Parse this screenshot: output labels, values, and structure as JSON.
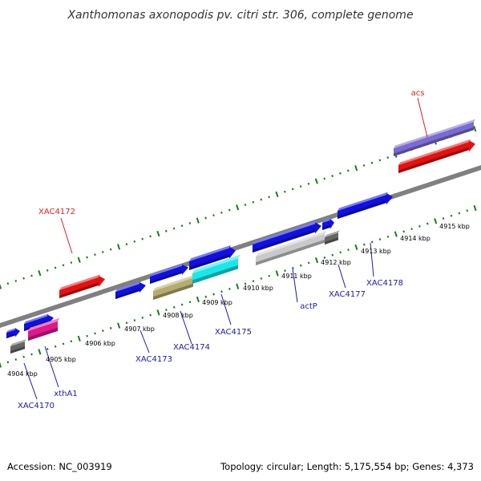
{
  "title": "Xanthomonas axonopodis pv. citri str. 306, complete genome",
  "footer": {
    "accession": "Accession: NC_003919",
    "summary": "Topology: circular; Length: 5,175,554 bp; Genes: 4,373"
  },
  "colors": {
    "tick": "#1f7a1f",
    "backbone": "#808080",
    "label_blue": "#1a1aaa",
    "label_red": "#e01e1e",
    "connector_blue": "#1a1aaa",
    "connector_red": "#e01e1e"
  },
  "scale_labels": [
    "4904 kbp",
    "4905 kbp",
    "4906 kbp",
    "4907 kbp",
    "4908 kbp",
    "4909 kbp",
    "4910 kbp",
    "4911 kbp",
    "4912 kbp",
    "4913 kbp",
    "4914 kbp",
    "4915 kbp"
  ],
  "features": [
    {
      "color": "#1010e0",
      "style": "arrow"
    },
    {
      "color": "#1010e0",
      "style": "arrow"
    },
    {
      "color": "#666666",
      "style": "block"
    },
    {
      "color": "#e0188a",
      "style": "block"
    },
    {
      "color": "#e51010",
      "style": "arrow"
    },
    {
      "color": "#1010e0",
      "style": "arrow"
    },
    {
      "color": "#1010e0",
      "style": "arrow"
    },
    {
      "color": "#1010e0",
      "style": "arrow"
    },
    {
      "color": "#b5ad70",
      "style": "block"
    },
    {
      "color": "#19e8ea",
      "style": "block"
    },
    {
      "color": "#1010e0",
      "style": "arrow"
    },
    {
      "color": "#1010e0",
      "style": "arrow"
    },
    {
      "color": "#1010e0",
      "style": "arrow"
    },
    {
      "color": "#c9c9c9",
      "style": "block"
    },
    {
      "color": "#666666",
      "style": "block"
    },
    {
      "color": "#7a6bd2",
      "style": "block"
    },
    {
      "color": "#e51010",
      "style": "arrow"
    }
  ],
  "gene_labels": [
    {
      "text": "XAC4170",
      "color": "blue"
    },
    {
      "text": "xthA1",
      "color": "blue"
    },
    {
      "text": "XAC4172",
      "color": "red"
    },
    {
      "text": "XAC4173",
      "color": "blue"
    },
    {
      "text": "XAC4174",
      "color": "blue"
    },
    {
      "text": "XAC4175",
      "color": "blue"
    },
    {
      "text": "actP",
      "color": "blue"
    },
    {
      "text": "XAC4177",
      "color": "blue"
    },
    {
      "text": "XAC4178",
      "color": "blue"
    },
    {
      "text": "acs",
      "color": "red"
    }
  ]
}
